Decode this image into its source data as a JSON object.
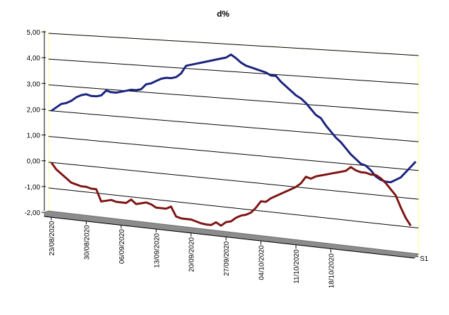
{
  "chart_data": {
    "type": "line",
    "title": "d%",
    "xlabel": "",
    "ylabel": "",
    "ylim": [
      -2,
      5
    ],
    "y_ticks": [
      "-2,00",
      "-1,00",
      "0,00",
      "1,00",
      "2,00",
      "3,00",
      "4,00",
      "5,00"
    ],
    "x_ticks": [
      "23/08/2020",
      "30/08/2020",
      "06/09/2020",
      "13/09/2020",
      "20/09/2020",
      "27/09/2020",
      "04/10/2020",
      "11/10/2020",
      "18/10/2020"
    ],
    "depth_axis_label": "S1",
    "grid": true,
    "view": "3d-perspective",
    "colors": {
      "series_blue": "#1a237e",
      "series_red": "#7f1414",
      "floor": "#8c8c8c",
      "wall_edge": "#ffff99"
    },
    "x_start": "23/08/2020",
    "x_end": "20/10/2020",
    "series": [
      {
        "values": [
          2.0,
          2.15,
          2.3,
          2.35,
          2.45,
          2.6,
          2.7,
          2.75,
          2.7,
          2.7,
          2.75,
          2.95,
          2.9,
          2.9,
          2.95,
          3.0,
          3.05,
          3.05,
          3.1,
          3.3,
          3.35,
          3.45,
          3.55,
          3.6,
          3.6,
          3.65,
          3.8,
          4.1,
          4.15,
          4.2,
          4.25,
          4.3,
          4.35,
          4.4,
          4.45,
          4.5,
          4.62,
          4.5,
          4.35,
          4.25,
          4.2,
          4.15,
          4.1,
          4.05,
          3.95,
          3.95,
          3.75,
          3.6,
          3.45,
          3.3,
          3.2,
          3.05,
          2.85,
          2.65,
          2.55,
          2.3,
          2.1,
          1.9,
          1.75,
          1.55,
          1.35,
          1.2,
          1.05,
          1.0,
          0.85,
          0.65,
          0.55,
          0.5,
          0.5,
          0.6,
          0.7,
          0.9,
          1.1,
          1.3
        ]
      },
      {
        "values": [
          0.0,
          -0.25,
          -0.4,
          -0.55,
          -0.7,
          -0.75,
          -0.8,
          -0.8,
          -0.85,
          -0.85,
          -1.3,
          -1.25,
          -1.2,
          -1.25,
          -1.25,
          -1.25,
          -1.1,
          -1.25,
          -1.2,
          -1.15,
          -1.2,
          -1.3,
          -1.3,
          -1.3,
          -1.2,
          -1.55,
          -1.6,
          -1.6,
          -1.6,
          -1.65,
          -1.7,
          -1.72,
          -1.72,
          -1.6,
          -1.7,
          -1.55,
          -1.5,
          -1.35,
          -1.25,
          -1.2,
          -1.1,
          -0.9,
          -0.65,
          -0.65,
          -0.5,
          -0.4,
          -0.3,
          -0.2,
          -0.1,
          0.0,
          0.15,
          0.4,
          0.35,
          0.45,
          0.5,
          0.55,
          0.6,
          0.65,
          0.7,
          0.75,
          0.9,
          0.8,
          0.75,
          0.75,
          0.7,
          0.7,
          0.6,
          0.45,
          0.25,
          0.05,
          -0.35,
          -0.7,
          -0.95
        ]
      }
    ]
  }
}
